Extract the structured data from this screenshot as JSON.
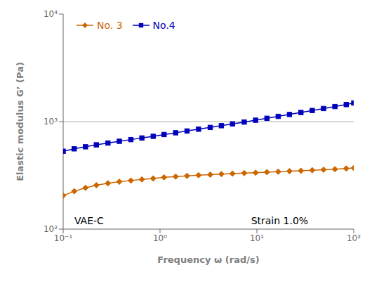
{
  "chart_data": {
    "type": "line",
    "xlabel": "Frequency ω  (rad/s)",
    "ylabel": "Elastic modulus G’ (Pa)",
    "log": true,
    "xlim": [
      0.1,
      100
    ],
    "ylim": [
      100,
      10000
    ],
    "xticks": [
      {
        "value": 0.1,
        "label": "10⁻¹"
      },
      {
        "value": 1,
        "label": "10⁰"
      },
      {
        "value": 10,
        "label": "10¹"
      },
      {
        "value": 100,
        "label": "10²"
      }
    ],
    "yticks": [
      {
        "value": 100,
        "label": "10²"
      },
      {
        "value": 1000,
        "label": "10³"
      },
      {
        "value": 10000,
        "label": "10⁴"
      }
    ],
    "grid": false,
    "legend": "upper left",
    "x": [
      0.1,
      0.13,
      0.17,
      0.22,
      0.29,
      0.38,
      0.5,
      0.65,
      0.85,
      1.1,
      1.45,
      1.9,
      2.5,
      3.3,
      4.3,
      5.6,
      7.4,
      9.7,
      12.7,
      16.6,
      21.7,
      28.5,
      37.3,
      48.8,
      63.9,
      83.7,
      100
    ],
    "series": [
      {
        "name": "No. 3",
        "color": "#cc6600",
        "marker": "diamond",
        "values": [
          205,
          225,
          242,
          256,
          267,
          276,
          283,
          290,
          296,
          303,
          308,
          313,
          317,
          321,
          325,
          328,
          332,
          335,
          339,
          342,
          346,
          349,
          353,
          357,
          361,
          366,
          370
        ]
      },
      {
        "name": "No.4",
        "color": "#0000bb",
        "marker": "square",
        "values": [
          530,
          558,
          583,
          608,
          632,
          656,
          680,
          704,
          730,
          758,
          787,
          818,
          850,
          882,
          916,
          952,
          990,
          1030,
          1073,
          1118,
          1165,
          1215,
          1268,
          1323,
          1380,
          1440,
          1490
        ]
      }
    ],
    "hline": {
      "y": 1000,
      "color": "#aaaaaa"
    },
    "annotations": [
      {
        "text": "VAE-C",
        "x": 0.12,
        "y": 120
      },
      {
        "text": "Strain 1.0%",
        "x": 8,
        "y": 120
      }
    ]
  }
}
